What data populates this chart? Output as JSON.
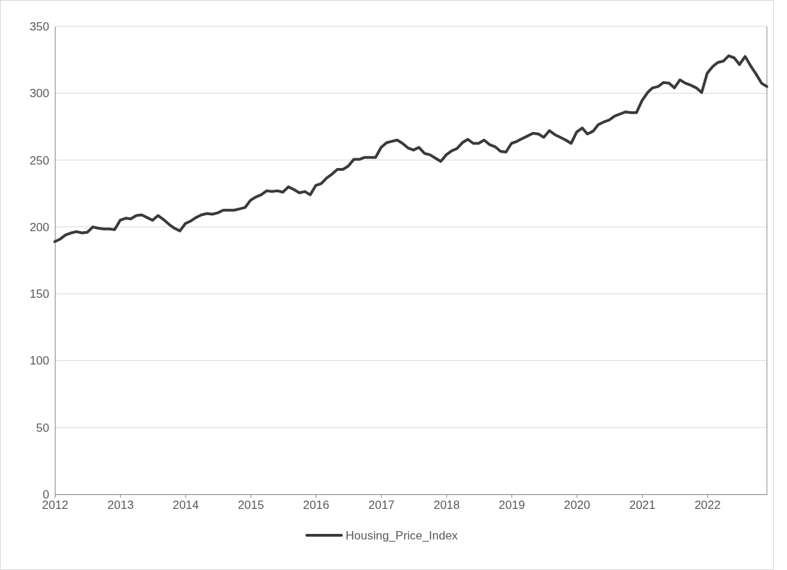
{
  "chart_data": {
    "type": "line",
    "x": [
      "2012-01",
      "2012-02",
      "2012-03",
      "2012-04",
      "2012-05",
      "2012-06",
      "2012-07",
      "2012-08",
      "2012-09",
      "2012-10",
      "2012-11",
      "2012-12",
      "2013-01",
      "2013-02",
      "2013-03",
      "2013-04",
      "2013-05",
      "2013-06",
      "2013-07",
      "2013-08",
      "2013-09",
      "2013-10",
      "2013-11",
      "2013-12",
      "2014-01",
      "2014-02",
      "2014-03",
      "2014-04",
      "2014-05",
      "2014-06",
      "2014-07",
      "2014-08",
      "2014-09",
      "2014-10",
      "2014-11",
      "2014-12",
      "2015-01",
      "2015-02",
      "2015-03",
      "2015-04",
      "2015-05",
      "2015-06",
      "2015-07",
      "2015-08",
      "2015-09",
      "2015-10",
      "2015-11",
      "2015-12",
      "2016-01",
      "2016-02",
      "2016-03",
      "2016-04",
      "2016-05",
      "2016-06",
      "2016-07",
      "2016-08",
      "2016-09",
      "2016-10",
      "2016-11",
      "2016-12",
      "2017-01",
      "2017-02",
      "2017-03",
      "2017-04",
      "2017-05",
      "2017-06",
      "2017-07",
      "2017-08",
      "2017-09",
      "2017-10",
      "2017-11",
      "2017-12",
      "2018-01",
      "2018-02",
      "2018-03",
      "2018-04",
      "2018-05",
      "2018-06",
      "2018-07",
      "2018-08",
      "2018-09",
      "2018-10",
      "2018-11",
      "2018-12",
      "2019-01",
      "2019-02",
      "2019-03",
      "2019-04",
      "2019-05",
      "2019-06",
      "2019-07",
      "2019-08",
      "2019-09",
      "2019-10",
      "2019-11",
      "2019-12",
      "2020-01",
      "2020-02",
      "2020-03",
      "2020-04",
      "2020-05",
      "2020-06",
      "2020-07",
      "2020-08",
      "2020-09",
      "2020-10",
      "2020-11",
      "2020-12",
      "2021-01",
      "2021-02",
      "2021-03",
      "2021-04",
      "2021-05",
      "2021-06",
      "2021-07",
      "2021-08",
      "2021-09",
      "2021-10",
      "2021-11",
      "2021-12",
      "2022-01",
      "2022-02",
      "2022-03",
      "2022-04",
      "2022-05",
      "2022-06",
      "2022-07",
      "2022-08",
      "2022-09",
      "2022-10",
      "2022-11",
      "2022-12"
    ],
    "series": [
      {
        "name": "Housing_Price_Index",
        "color": "#3a3a3a",
        "values": [
          189,
          191,
          194,
          195.5,
          196.5,
          195.5,
          196,
          200,
          199,
          198.5,
          198.5,
          198,
          205,
          206.5,
          206,
          208.5,
          209,
          207,
          205,
          208.5,
          205.5,
          202,
          199,
          197,
          202.5,
          204.5,
          207,
          209,
          210,
          209.5,
          210.5,
          212.5,
          212.5,
          212.5,
          213.5,
          214.5,
          220,
          222.5,
          224,
          227,
          226.5,
          227,
          226,
          230,
          228,
          225.5,
          226.5,
          224,
          231,
          232.5,
          236.5,
          239.5,
          243,
          243,
          245.5,
          250.5,
          250.5,
          252,
          252,
          252,
          259.5,
          263,
          264,
          265,
          262.5,
          259,
          257.5,
          259.5,
          255,
          254,
          251.5,
          249,
          254,
          257,
          258.5,
          263,
          265.5,
          262.5,
          262.5,
          265,
          261.5,
          260,
          256.5,
          256,
          262.5,
          264,
          266,
          268,
          270,
          269.5,
          267,
          272,
          269,
          267,
          265,
          262.5,
          271,
          274,
          269.5,
          271.5,
          276.5,
          278.5,
          280,
          283,
          284.5,
          286,
          285.5,
          285.5,
          294.5,
          300.5,
          304,
          305,
          308,
          307.5,
          304,
          310,
          307.5,
          306,
          304,
          300.5,
          315,
          320,
          323,
          324,
          328,
          326.5,
          321.5,
          327.5,
          320.5,
          314.5,
          307.5,
          305
        ]
      }
    ],
    "xlim": [
      "2012-01",
      "2022-12"
    ],
    "xticks": [
      {
        "value": "2012-01",
        "label": "2012"
      },
      {
        "value": "2013-01",
        "label": "2013"
      },
      {
        "value": "2014-01",
        "label": "2014"
      },
      {
        "value": "2015-01",
        "label": "2015"
      },
      {
        "value": "2016-01",
        "label": "2016"
      },
      {
        "value": "2017-01",
        "label": "2017"
      },
      {
        "value": "2018-01",
        "label": "2018"
      },
      {
        "value": "2019-01",
        "label": "2019"
      },
      {
        "value": "2020-01",
        "label": "2020"
      },
      {
        "value": "2021-01",
        "label": "2021"
      },
      {
        "value": "2022-01",
        "label": "2022"
      }
    ],
    "ylim": [
      0,
      350
    ],
    "yticks": [
      0,
      50,
      100,
      150,
      200,
      250,
      300,
      350
    ],
    "grid": "y",
    "legend": "bottom",
    "marker": "none",
    "line_style": "solid"
  }
}
